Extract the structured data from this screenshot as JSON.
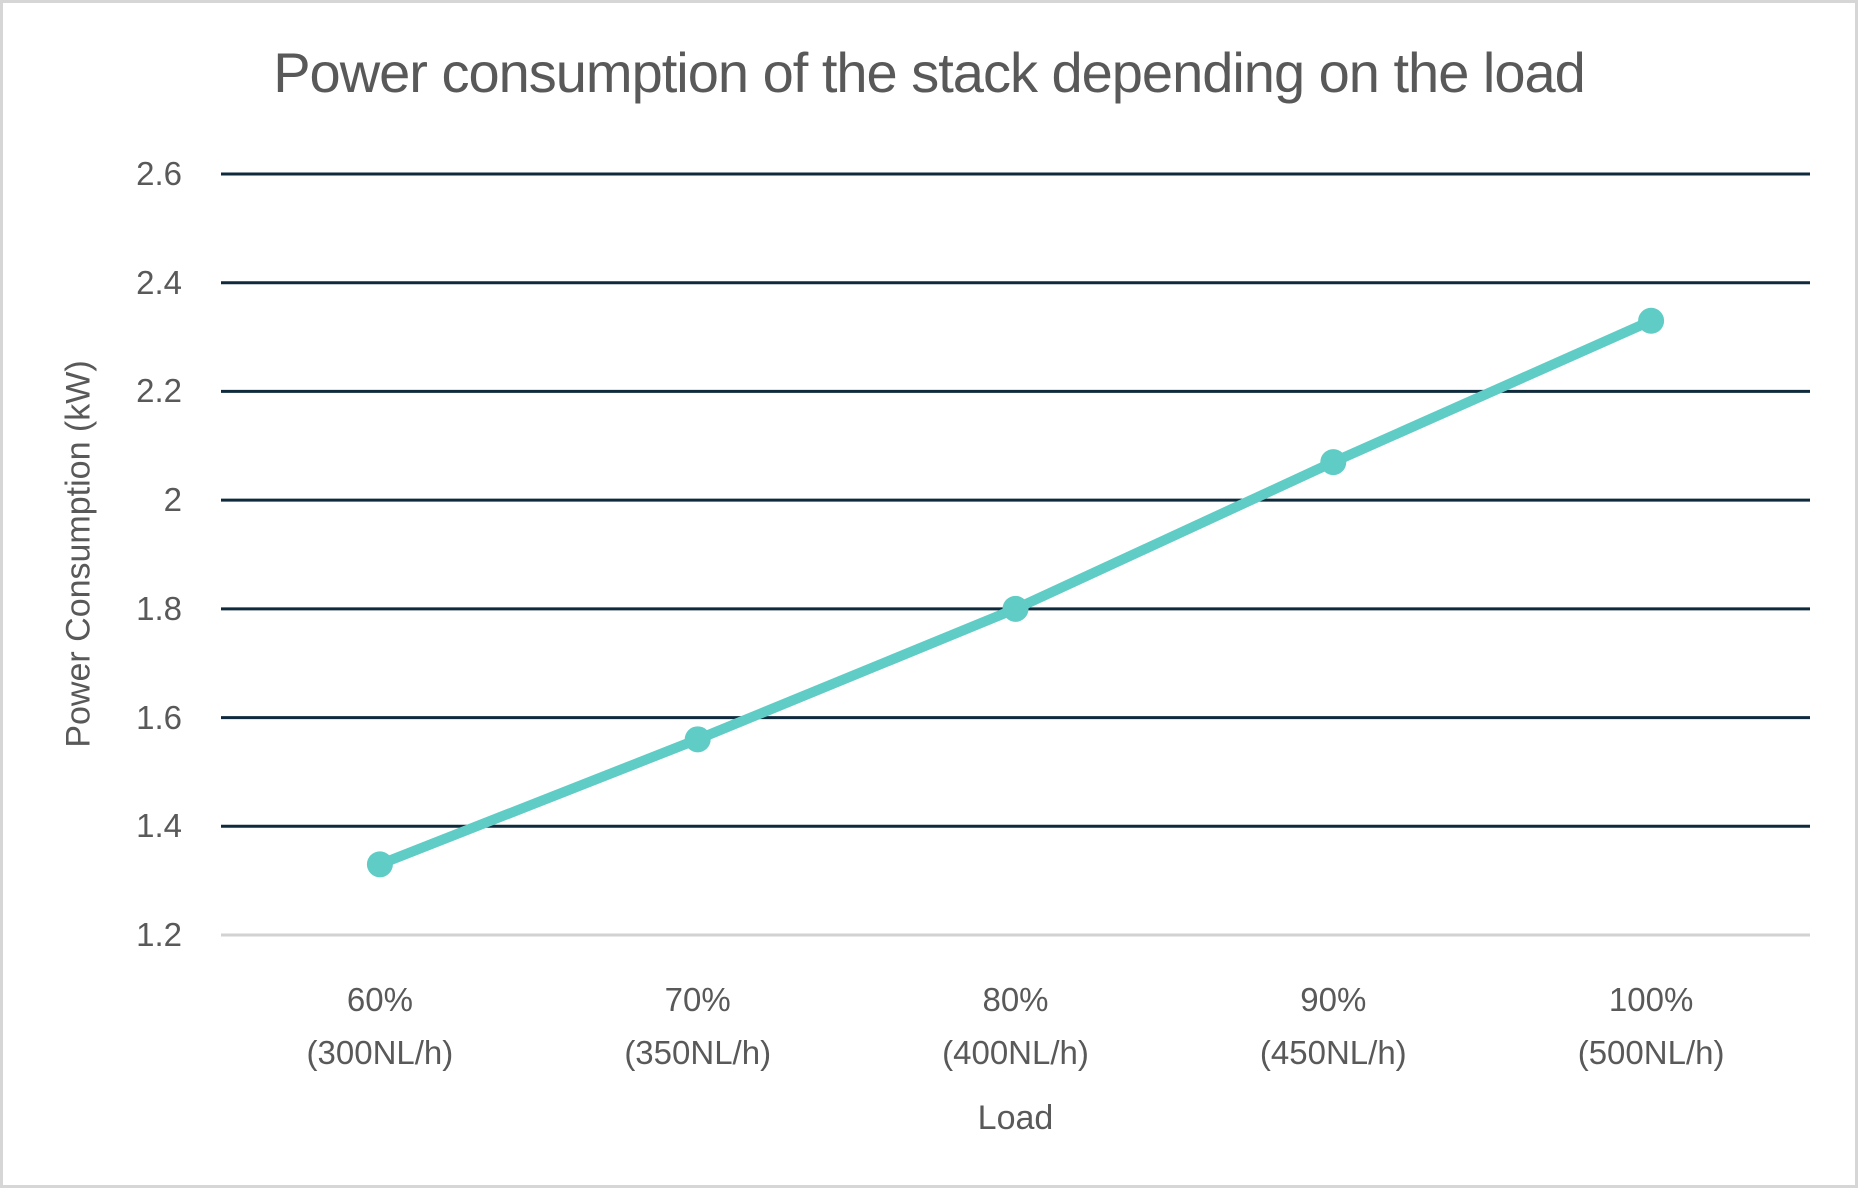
{
  "chart_data": {
    "type": "line",
    "title": "Power consumption of the stack depending on the load",
    "xlabel": "Load",
    "ylabel": "Power Consumption (kW)",
    "categories": [
      {
        "percent": "60%",
        "flow": "(300NL/h)"
      },
      {
        "percent": "70%",
        "flow": "(350NL/h)"
      },
      {
        "percent": "80%",
        "flow": "(400NL/h)"
      },
      {
        "percent": "90%",
        "flow": "(450NL/h)"
      },
      {
        "percent": "100%",
        "flow": "(500NL/h)"
      }
    ],
    "values": [
      1.33,
      1.56,
      1.8,
      2.07,
      2.33
    ],
    "yticks": [
      {
        "value": 1.2,
        "label": "1.2"
      },
      {
        "value": 1.4,
        "label": "1.4"
      },
      {
        "value": 1.6,
        "label": "1.6"
      },
      {
        "value": 1.8,
        "label": "1.8"
      },
      {
        "value": 2.0,
        "label": "2"
      },
      {
        "value": 2.2,
        "label": "2.2"
      },
      {
        "value": 2.4,
        "label": "2.4"
      },
      {
        "value": 2.6,
        "label": "2.6"
      }
    ],
    "ylim": [
      1.2,
      2.6
    ],
    "grid": "horizontal",
    "legend": "none",
    "colors": {
      "line": "#5fccc5",
      "marker": "#5fccc5",
      "gridline": "#0e2a3c",
      "axis_line": "#d2d2d2",
      "text": "#595959",
      "frame_border": "#d6d6d6"
    }
  }
}
